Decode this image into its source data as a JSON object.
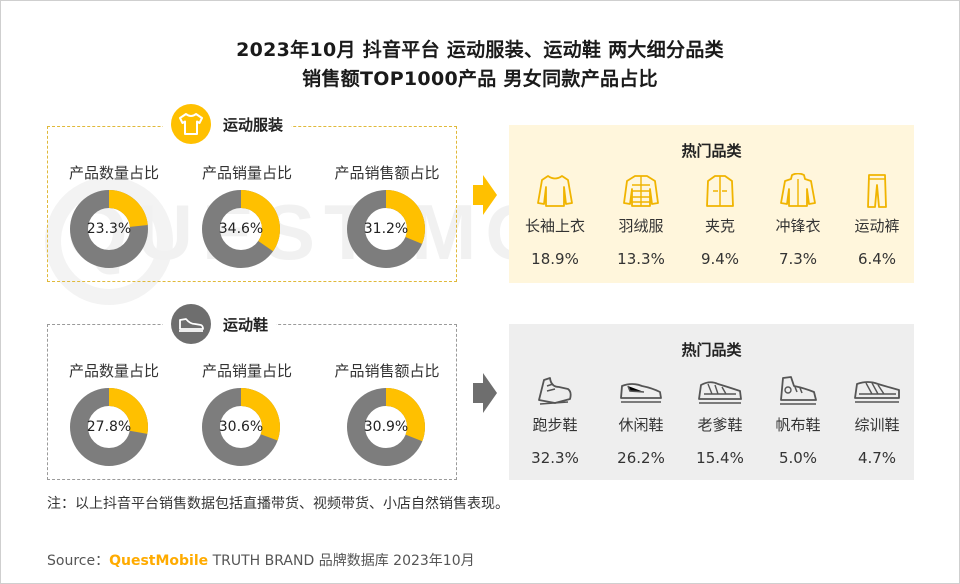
{
  "title": {
    "line1": "2023年10月 抖音平台 运动服装、运动鞋 两大细分品类",
    "line2": "销售额TOP1000产品 男女同款产品占比"
  },
  "watermark": "QUEST MOBILE",
  "colors": {
    "accent": "#ffc000",
    "donut_rest": "#7d7d7d",
    "yellow_bg": "#fff6dc",
    "gray_bg": "#eeeeee"
  },
  "apparel": {
    "section_label": "运动服装",
    "section_icon": "tshirt-icon",
    "hot_title": "热门品类",
    "categories": [
      {
        "name": "长袖上衣",
        "pct": "18.9%",
        "icon": "long-sleeve-top-icon"
      },
      {
        "name": "羽绒服",
        "pct": "13.3%",
        "icon": "down-jacket-icon"
      },
      {
        "name": "夹克",
        "pct": "9.4%",
        "icon": "jacket-icon"
      },
      {
        "name": "冲锋衣",
        "pct": "7.3%",
        "icon": "windbreaker-icon"
      },
      {
        "name": "运动裤",
        "pct": "6.4%",
        "icon": "sport-pants-icon"
      }
    ]
  },
  "shoes": {
    "section_label": "运动鞋",
    "section_icon": "sneaker-icon",
    "hot_title": "热门品类",
    "categories": [
      {
        "name": "跑步鞋",
        "pct": "32.3%",
        "icon": "running-shoe-icon"
      },
      {
        "name": "休闲鞋",
        "pct": "26.2%",
        "icon": "casual-shoe-icon"
      },
      {
        "name": "老爹鞋",
        "pct": "15.4%",
        "icon": "dad-shoe-icon"
      },
      {
        "name": "帆布鞋",
        "pct": "5.0%",
        "icon": "canvas-shoe-icon"
      },
      {
        "name": "综训鞋",
        "pct": "4.7%",
        "icon": "training-shoe-icon"
      }
    ]
  },
  "chart_data": [
    {
      "type": "pie",
      "title": "运动服装 男女同款产品占比",
      "categories": [
        "产品数量占比",
        "产品销量占比",
        "产品销售额占比"
      ],
      "values": [
        23.3,
        34.6,
        31.2
      ],
      "labels": [
        "23.3%",
        "34.6%",
        "31.2%"
      ]
    },
    {
      "type": "pie",
      "title": "运动鞋 男女同款产品占比",
      "categories": [
        "产品数量占比",
        "产品销量占比",
        "产品销售额占比"
      ],
      "values": [
        27.8,
        30.6,
        30.9
      ],
      "labels": [
        "27.8%",
        "30.6%",
        "30.9%"
      ]
    }
  ],
  "note": "注：以上抖音平台销售数据包括直播带货、视频带货、小店自然销售表现。",
  "source": {
    "prefix": "Source：",
    "brand": "QuestMobile",
    "rest": " TRUTH BRAND 品牌数据库 2023年10月"
  }
}
